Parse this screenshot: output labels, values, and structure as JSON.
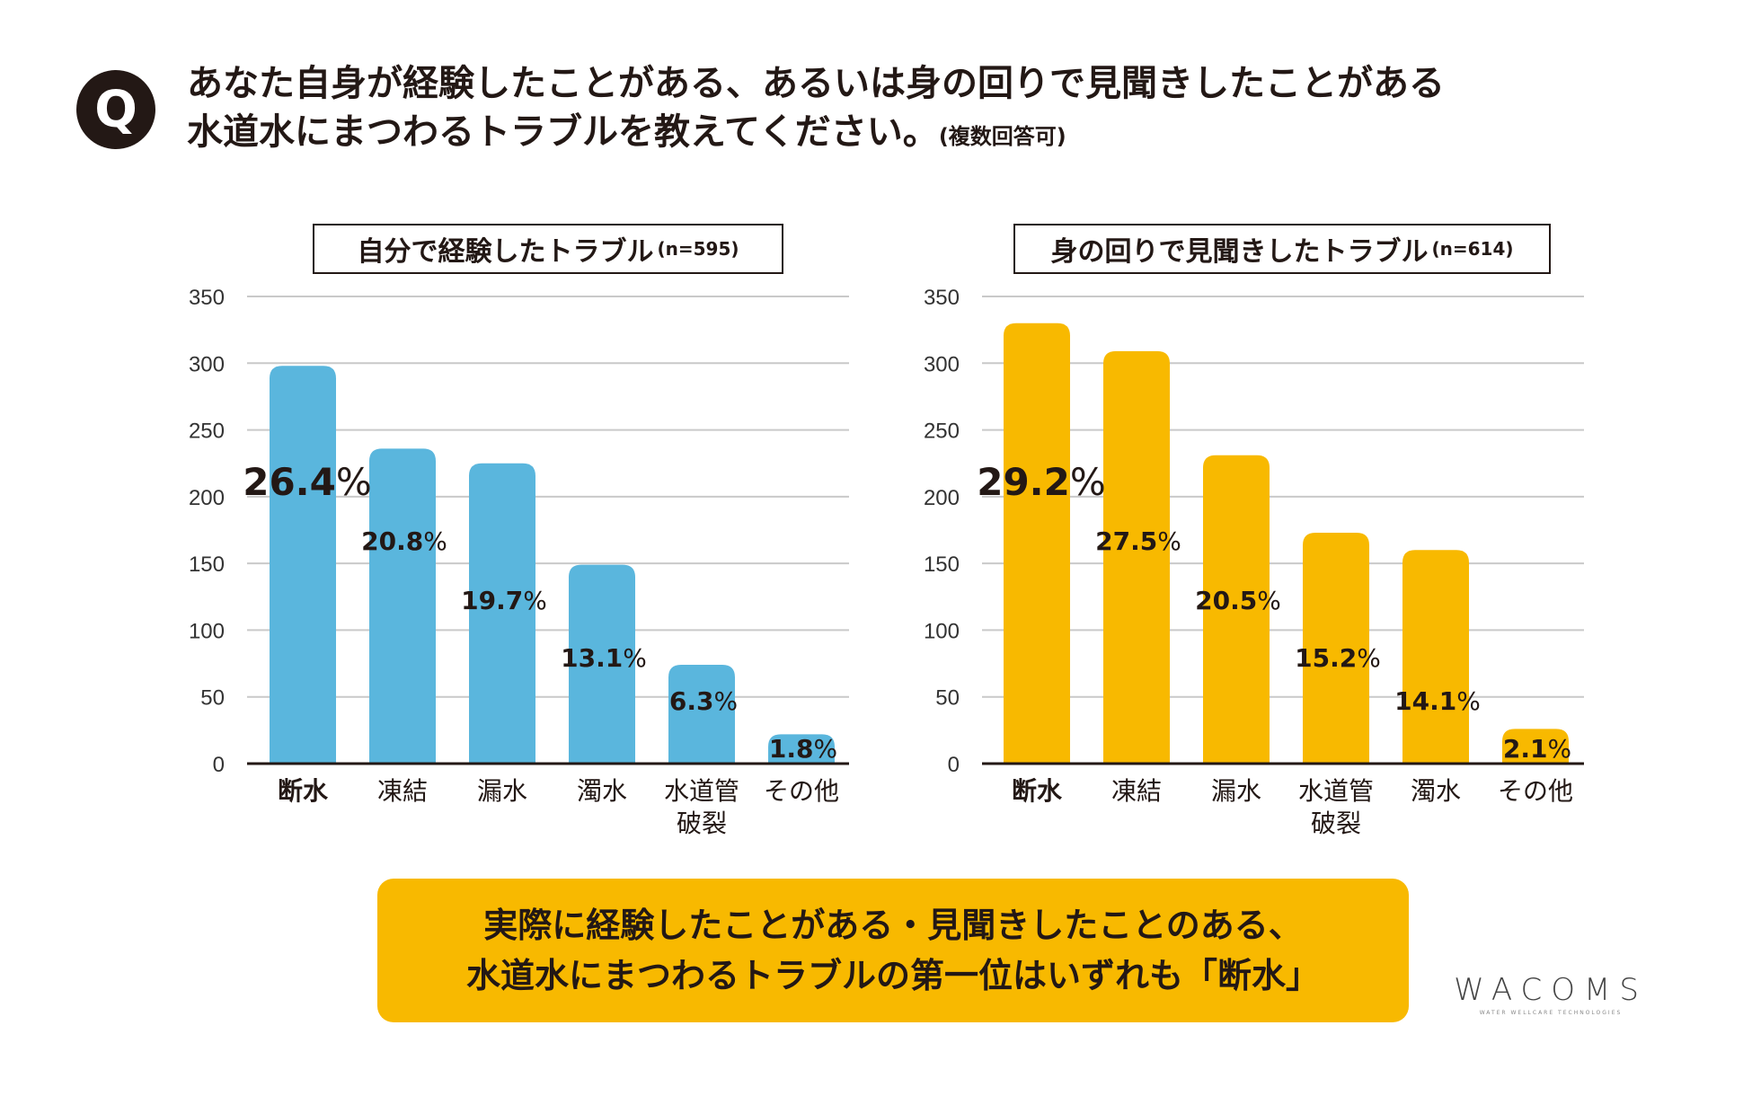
{
  "question": {
    "badge": "Q",
    "line1": "あなた自身が経験したことがある、あるいは身の回りで見聞きしたことがある",
    "line2": "水道水にまつわるトラブルを教えてください。",
    "note": "(複数回答可)"
  },
  "chart_data": [
    {
      "type": "bar",
      "title": "自分で経験したトラブル",
      "n_label": "(n=595)",
      "color": "#5ab6dd",
      "ylim": [
        0,
        350
      ],
      "yticks": [
        0,
        50,
        100,
        150,
        200,
        250,
        300,
        350
      ],
      "categories": [
        "断水",
        "凍結",
        "漏水",
        "濁水",
        "水道管\n破裂",
        "その他"
      ],
      "values": [
        298,
        236,
        225,
        149,
        74,
        22
      ],
      "labels": [
        "26.4",
        "20.8",
        "19.7",
        "13.1",
        "6.3",
        "1.8"
      ],
      "unit": "%"
    },
    {
      "type": "bar",
      "title": "身の回りで見聞きしたトラブル",
      "n_label": "(n=614)",
      "color": "#f8b900",
      "ylim": [
        0,
        350
      ],
      "yticks": [
        0,
        50,
        100,
        150,
        200,
        250,
        300,
        350
      ],
      "categories": [
        "断水",
        "凍結",
        "漏水",
        "水道管\n破裂",
        "濁水",
        "その他"
      ],
      "values": [
        330,
        309,
        231,
        173,
        160,
        26
      ],
      "labels": [
        "29.2",
        "27.5",
        "20.5",
        "15.2",
        "14.1",
        "2.1"
      ],
      "unit": "%"
    }
  ],
  "summary": {
    "line1": "実際に経験したことがある・見聞きしたことのある、",
    "line2": "水道水にまつわるトラブルの第一位はいずれも「断水」"
  },
  "logo": {
    "main": "WACOMS",
    "sub": "WATER WELLCARE TECHNOLOGIES"
  }
}
